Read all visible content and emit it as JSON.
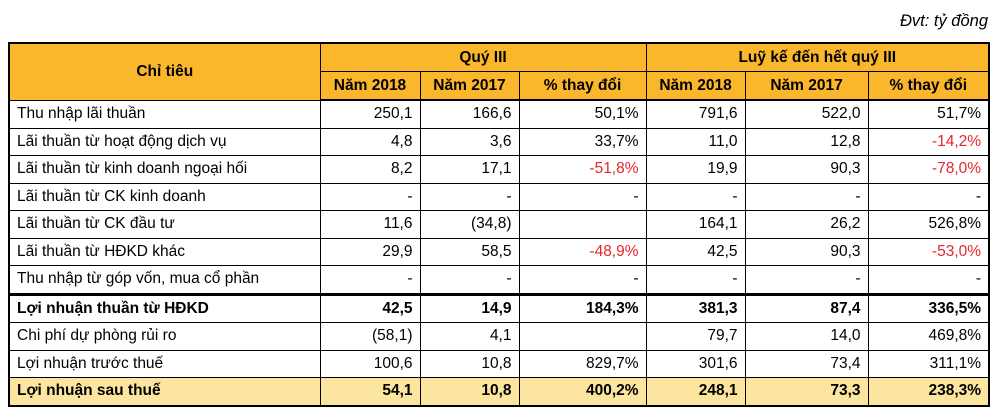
{
  "unit_note": "Đvt: tỷ đồng",
  "colors": {
    "header_bg": "#FBB72B",
    "highlight_bg": "#FCE59F",
    "negative_text": "#E8252A",
    "border": "#000000"
  },
  "table": {
    "header_label": "Chỉ tiêu",
    "groups": [
      {
        "label": "Quý III",
        "cols": [
          "Năm 2018",
          "Năm 2017",
          "% thay đổi"
        ]
      },
      {
        "label": "Luỹ kế đến hết quý III",
        "cols": [
          "Năm 2018",
          "Năm 2017",
          "% thay đổi"
        ]
      }
    ],
    "rows": [
      {
        "label": "Thu nhập lãi thuần",
        "values": [
          "250,1",
          "166,6",
          "50,1%",
          "791,6",
          "522,0",
          "51,7%"
        ]
      },
      {
        "label": "Lãi thuần từ hoạt động dịch vụ",
        "values": [
          "4,8",
          "3,6",
          "33,7%",
          "11,0",
          "12,8",
          "-14,2%"
        ],
        "neg": [
          0,
          0,
          0,
          0,
          0,
          1
        ]
      },
      {
        "label": "Lãi thuần từ kinh doanh ngoại hối",
        "values": [
          "8,2",
          "17,1",
          "-51,8%",
          "19,9",
          "90,3",
          "-78,0%"
        ],
        "neg": [
          0,
          0,
          1,
          0,
          0,
          1
        ]
      },
      {
        "label": "Lãi thuần từ CK kinh doanh",
        "values": [
          "-",
          "-",
          "-",
          "-",
          "-",
          "-"
        ]
      },
      {
        "label": "Lãi thuần từ CK đầu tư",
        "values": [
          "11,6",
          "(34,8)",
          "",
          "164,1",
          "26,2",
          "526,8%"
        ]
      },
      {
        "label": "Lãi thuần từ HĐKD khác",
        "values": [
          "29,9",
          "58,5",
          "-48,9%",
          "42,5",
          "90,3",
          "-53,0%"
        ],
        "neg": [
          0,
          0,
          1,
          0,
          0,
          1
        ]
      },
      {
        "label": "Thu nhập từ góp vốn, mua cổ phần",
        "values": [
          "-",
          "-",
          "-",
          "-",
          "-",
          "-"
        ]
      },
      {
        "label": "Lợi nhuận thuần từ HĐKD",
        "values": [
          "42,5",
          "14,9",
          "184,3%",
          "381,3",
          "87,4",
          "336,5%"
        ],
        "bold": true,
        "thick_top": true
      },
      {
        "label": "Chi phí dự phòng rủi ro",
        "values": [
          "(58,1)",
          "4,1",
          "",
          "79,7",
          "14,0",
          "469,8%"
        ]
      },
      {
        "label": "Lợi nhuận trước thuế",
        "values": [
          "100,6",
          "10,8",
          "829,7%",
          "301,6",
          "73,4",
          "311,1%"
        ]
      },
      {
        "label": "Lợi nhuận sau thuế",
        "values": [
          "54,1",
          "10,8",
          "400,2%",
          "248,1",
          "73,3",
          "238,3%"
        ],
        "bold": true,
        "highlight": true
      }
    ]
  }
}
